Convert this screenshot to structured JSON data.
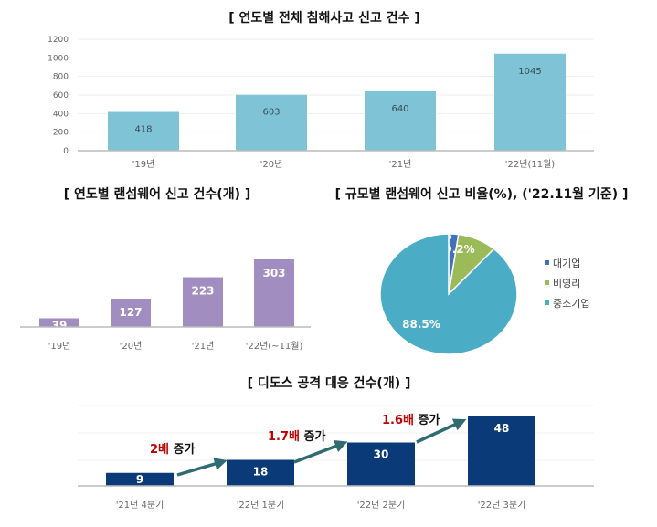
{
  "chart_data": [
    {
      "type": "bar",
      "title": "[ 연도별 전체 침해사고 신고 건수 ]",
      "categories": [
        "'19년",
        "'20년",
        "'21년",
        "'22년(11월)"
      ],
      "values": [
        418,
        603,
        640,
        1045
      ],
      "ylim": [
        0,
        1200
      ],
      "yticks": [
        0,
        200,
        400,
        600,
        800,
        1000,
        1200
      ],
      "grid": true,
      "color": "#7fc4d6"
    },
    {
      "type": "bar",
      "title": "[ 연도별 랜섬웨어 신고 건수(개) ]",
      "categories": [
        "'19년",
        "'20년",
        "'21년",
        "'22년(~11월)"
      ],
      "values": [
        39,
        127,
        223,
        303
      ],
      "grid": false,
      "color": "#a18dbf"
    },
    {
      "type": "pie",
      "title": "[ 규모별 랜섬웨어 신고 비율(%), ('22.11월 기준) ]",
      "categories": [
        "대기업",
        "비영리",
        "중소기업"
      ],
      "values": [
        2.3,
        9.2,
        88.5
      ],
      "labels": [
        "2.3%",
        "9.2%",
        "88.5%"
      ],
      "colors": [
        "#3f72b8",
        "#9bbb59",
        "#4bacc6"
      ],
      "legend": "right"
    },
    {
      "type": "bar",
      "title": "[ 디도스 공격 대응 건수(개) ]",
      "categories": [
        "'21년 4분기",
        "'22년 1분기",
        "'22년 2분기",
        "'22년 3분기"
      ],
      "values": [
        9,
        18,
        30,
        48
      ],
      "grid": true,
      "color": "#0b3a78",
      "annotations": [
        {
          "multiplier": "2배",
          "suffix": " 증가"
        },
        {
          "multiplier": "1.7배",
          "suffix": " 증가"
        },
        {
          "multiplier": "1.6배",
          "suffix": " 증가"
        }
      ],
      "arrow_color": "#2f6b70",
      "highlight_color": "#c00000"
    }
  ]
}
